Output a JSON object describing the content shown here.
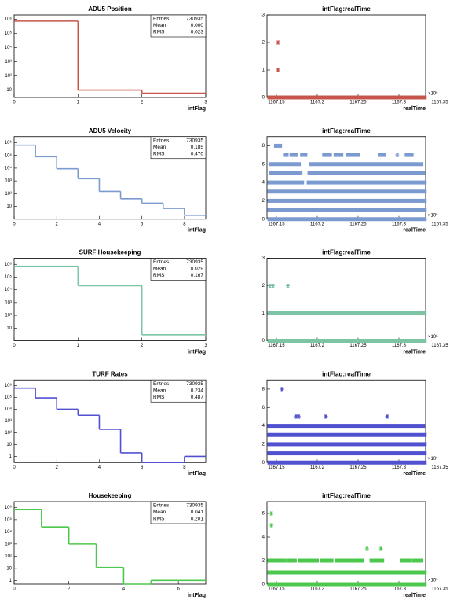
{
  "chart_data": [
    {
      "type": "histogram",
      "title": "ADU5 Position",
      "x_label": "intFlag",
      "color": "#c8554c",
      "log_y": true,
      "bins": [
        0,
        1,
        2,
        3
      ],
      "values": [
        730919,
        10,
        6
      ],
      "xlim": [
        0,
        3
      ],
      "xticks": [
        0,
        1,
        2,
        3
      ],
      "ylim": [
        3,
        2000000
      ],
      "yticks": [
        {
          "value": 10,
          "label": "10"
        },
        {
          "value": 100,
          "label": "10²"
        },
        {
          "value": 1000,
          "label": "10³"
        },
        {
          "value": 10000,
          "label": "10⁴"
        },
        {
          "value": 100000,
          "label": "10⁵"
        },
        {
          "value": 1000000,
          "label": "10⁶"
        }
      ],
      "stats": {
        "labels": [
          "Entries",
          "Mean",
          "RMS"
        ],
        "values": [
          "730935",
          "0.000",
          "0.023"
        ]
      }
    },
    {
      "type": "scatter",
      "title": "intFlag:realTime",
      "x_label": "realTime",
      "x_multiplier": "×10⁶",
      "color": "#c8554c",
      "xlim": [
        1167.1385,
        1167.3327
      ],
      "xticks": [
        1167.15,
        1167.2,
        1167.25,
        1167.3,
        1167.35
      ],
      "ylim": [
        0,
        3
      ],
      "yticks": [
        0,
        1,
        2,
        3
      ],
      "segments": [
        {
          "y": 0,
          "x": [
            1167.141,
            1167.332
          ]
        }
      ],
      "points": {
        "x": [
          1167.152,
          1167.152
        ],
        "y": [
          2,
          1
        ]
      }
    },
    {
      "type": "histogram",
      "title": "ADU5 Velocity",
      "x_label": "intFlag",
      "color": "#7b9ad0",
      "log_y": true,
      "bins": [
        0,
        1,
        2,
        3,
        4,
        5,
        6,
        7,
        8,
        9
      ],
      "values": [
        640000,
        80000,
        9000,
        1500,
        150,
        40,
        18,
        7,
        2
      ],
      "xlim": [
        0,
        9
      ],
      "xticks": [
        0,
        2,
        4,
        6,
        8
      ],
      "ylim": [
        1,
        3000000
      ],
      "yticks": [
        {
          "value": 10,
          "label": "10"
        },
        {
          "value": 100,
          "label": "10²"
        },
        {
          "value": 1000,
          "label": "10³"
        },
        {
          "value": 10000,
          "label": "10⁴"
        },
        {
          "value": 100000,
          "label": "10⁵"
        },
        {
          "value": 1000000,
          "label": "10⁶"
        }
      ],
      "stats": {
        "labels": [
          "Entries",
          "Mean",
          "RMS"
        ],
        "values": [
          "730935",
          "0.185",
          "0.470"
        ]
      }
    },
    {
      "type": "scatter",
      "title": "intFlag:realTime",
      "x_label": "realTime",
      "x_multiplier": "×10⁶",
      "color": "#7b9ad0",
      "xlim": [
        1167.1385,
        1167.3327
      ],
      "xticks": [
        1167.15,
        1167.2,
        1167.25,
        1167.3,
        1167.35
      ],
      "ylim": [
        0,
        9
      ],
      "yticks": [
        0,
        2,
        4,
        6,
        8
      ],
      "segments": [
        {
          "y": 0,
          "x": [
            1167.141,
            1167.332
          ]
        },
        {
          "y": 1,
          "x": [
            1167.141,
            1167.183
          ]
        },
        {
          "y": 1,
          "x": [
            1167.187,
            1167.332
          ]
        },
        {
          "y": 2,
          "x": [
            1167.141,
            1167.183
          ]
        },
        {
          "y": 2,
          "x": [
            1167.187,
            1167.332
          ]
        },
        {
          "y": 3,
          "x": [
            1167.141,
            1167.183
          ]
        },
        {
          "y": 3,
          "x": [
            1167.187,
            1167.332
          ]
        },
        {
          "y": 4,
          "x": [
            1167.141,
            1167.182
          ]
        },
        {
          "y": 4,
          "x": [
            1167.189,
            1167.332
          ]
        },
        {
          "y": 5,
          "x": [
            1167.143,
            1167.18
          ]
        },
        {
          "y": 5,
          "x": [
            1167.19,
            1167.33
          ]
        },
        {
          "y": 6,
          "x": [
            1167.143,
            1167.178
          ]
        },
        {
          "y": 6,
          "x": [
            1167.192,
            1167.328
          ]
        },
        {
          "y": 7,
          "x": [
            1167.161,
            1167.163
          ]
        },
        {
          "y": 7,
          "x": [
            1167.168,
            1167.174
          ]
        },
        {
          "y": 7,
          "x": [
            1167.181,
            1167.186
          ]
        },
        {
          "y": 7,
          "x": [
            1167.208,
            1167.216
          ]
        },
        {
          "y": 7,
          "x": [
            1167.222,
            1167.23
          ]
        },
        {
          "y": 7,
          "x": [
            1167.237,
            1167.25
          ]
        },
        {
          "y": 7,
          "x": [
            1167.276,
            1167.282
          ]
        },
        {
          "y": 7,
          "x": [
            1167.309,
            1167.316
          ]
        },
        {
          "y": 8,
          "x": [
            1167.149,
            1167.155
          ]
        }
      ],
      "points": {
        "x": [
          1167.298
        ],
        "y": [
          7
        ]
      }
    },
    {
      "type": "histogram",
      "title": "SURF Housekeeping",
      "x_label": "intFlag",
      "color": "#7cc4a4",
      "log_y": true,
      "bins": [
        0,
        1,
        2,
        3
      ],
      "values": [
        710000,
        21000,
        3
      ],
      "xlim": [
        0,
        3
      ],
      "xticks": [
        0,
        1,
        2,
        3
      ],
      "ylim": [
        1,
        3000000
      ],
      "yticks": [
        {
          "value": 10,
          "label": "10"
        },
        {
          "value": 100,
          "label": "10²"
        },
        {
          "value": 1000,
          "label": "10³"
        },
        {
          "value": 10000,
          "label": "10⁴"
        },
        {
          "value": 100000,
          "label": "10⁵"
        },
        {
          "value": 1000000,
          "label": "10⁶"
        }
      ],
      "stats": {
        "labels": [
          "Entries",
          "Mean",
          "RMS"
        ],
        "values": [
          "730935",
          "0.029",
          "0.167"
        ]
      }
    },
    {
      "type": "scatter",
      "title": "intFlag:realTime",
      "x_label": "realTime",
      "x_multiplier": "×10⁶",
      "color": "#7cc4a4",
      "xlim": [
        1167.1385,
        1167.3327
      ],
      "xticks": [
        1167.15,
        1167.2,
        1167.25,
        1167.3,
        1167.35
      ],
      "ylim": [
        0,
        3
      ],
      "yticks": [
        0,
        1,
        2,
        3
      ],
      "segments": [
        {
          "y": 0,
          "x": [
            1167.141,
            1167.332
          ]
        },
        {
          "y": 1,
          "x": [
            1167.141,
            1167.332
          ]
        }
      ],
      "points": {
        "x": [
          1167.1419,
          1167.1457,
          1167.164
        ],
        "y": [
          2,
          2,
          2
        ]
      }
    },
    {
      "type": "histogram",
      "title": "TURF Rates",
      "x_label": "intFlag",
      "color": "#5050d0",
      "log_y": true,
      "bins": [
        0,
        1,
        2,
        3,
        4,
        5,
        6,
        7,
        8,
        9
      ],
      "values": [
        600000,
        90000,
        10000,
        3000,
        200,
        2,
        0,
        0,
        1
      ],
      "xlim": [
        0,
        9
      ],
      "xticks": [
        0,
        2,
        4,
        6,
        8
      ],
      "ylim": [
        0.3,
        3000000
      ],
      "yticks": [
        1,
        {
          "value": 10,
          "label": "10"
        },
        {
          "value": 100,
          "label": "10²"
        },
        {
          "value": 1000,
          "label": "10³"
        },
        {
          "value": 10000,
          "label": "10⁴"
        },
        {
          "value": 100000,
          "label": "10⁵"
        },
        {
          "value": 1000000,
          "label": "10⁶"
        }
      ],
      "stats": {
        "labels": [
          "Entries",
          "Mean",
          "RMS"
        ],
        "values": [
          "730935",
          "0.234",
          "0.487"
        ]
      }
    },
    {
      "type": "scatter",
      "title": "intFlag:realTime",
      "x_label": "realTime",
      "x_multiplier": "×10⁶",
      "color": "#5050d0",
      "xlim": [
        1167.1385,
        1167.3327
      ],
      "xticks": [
        1167.15,
        1167.2,
        1167.25,
        1167.3,
        1167.35
      ],
      "ylim": [
        0,
        9
      ],
      "yticks": [
        0,
        2,
        4,
        6,
        8
      ],
      "segments": [
        {
          "y": 0,
          "x": [
            1167.141,
            1167.332
          ]
        },
        {
          "y": 1,
          "x": [
            1167.141,
            1167.332
          ]
        },
        {
          "y": 2,
          "x": [
            1167.141,
            1167.332
          ]
        },
        {
          "y": 3,
          "x": [
            1167.141,
            1167.332
          ]
        },
        {
          "y": 4,
          "x": [
            1167.141,
            1167.33
          ]
        }
      ],
      "points": {
        "x": [
          1167.157,
          1167.1744,
          1167.1773,
          1167.2106,
          1167.2856
        ],
        "y": [
          8,
          5,
          5,
          5,
          5
        ]
      }
    },
    {
      "type": "histogram",
      "title": "Housekeeping",
      "x_label": "intFlag",
      "color": "#4cc84c",
      "log_y": true,
      "bins": [
        0,
        1,
        2,
        3,
        4,
        5,
        6,
        7
      ],
      "values": [
        700000,
        25000,
        1000,
        12,
        0,
        1,
        1
      ],
      "xlim": [
        0,
        7
      ],
      "xticks": [
        0,
        2,
        4,
        6
      ],
      "ylim": [
        0.5,
        3000000
      ],
      "yticks": [
        1,
        {
          "value": 10,
          "label": "10"
        },
        {
          "value": 100,
          "label": "10²"
        },
        {
          "value": 1000,
          "label": "10³"
        },
        {
          "value": 10000,
          "label": "10⁴"
        },
        {
          "value": 100000,
          "label": "10⁵"
        },
        {
          "value": 1000000,
          "label": "10⁶"
        }
      ],
      "stats": {
        "labels": [
          "Entries",
          "Mean",
          "RMS"
        ],
        "values": [
          "730935",
          "0.041",
          "0.201"
        ]
      }
    },
    {
      "type": "scatter",
      "title": "intFlag:realTime",
      "x_label": "realTime",
      "x_multiplier": "×10⁶",
      "color": "#4cc84c",
      "xlim": [
        1167.1385,
        1167.3327
      ],
      "xticks": [
        1167.15,
        1167.2,
        1167.25,
        1167.3,
        1167.35
      ],
      "ylim": [
        0,
        7
      ],
      "yticks": [
        0,
        2,
        4,
        6
      ],
      "segments": [
        {
          "y": 0,
          "x": [
            1167.141,
            1167.332
          ]
        },
        {
          "y": 1,
          "x": [
            1167.141,
            1167.332
          ]
        },
        {
          "y": 2,
          "x": [
            1167.141,
            1167.16
          ]
        },
        {
          "y": 2,
          "x": [
            1167.164,
            1167.173
          ]
        },
        {
          "y": 2,
          "x": [
            1167.178,
            1167.2
          ]
        },
        {
          "y": 2,
          "x": [
            1167.205,
            1167.218
          ]
        },
        {
          "y": 2,
          "x": [
            1167.223,
            1167.255
          ]
        },
        {
          "y": 2,
          "x": [
            1167.266,
            1167.28
          ]
        },
        {
          "y": 2,
          "x": [
            1167.303,
            1167.314
          ]
        },
        {
          "y": 2,
          "x": [
            1167.318,
            1167.328
          ]
        }
      ],
      "points": {
        "x": [
          1167.144,
          1167.144,
          1167.261,
          1167.278
        ],
        "y": [
          6,
          5,
          3,
          3
        ]
      }
    }
  ]
}
